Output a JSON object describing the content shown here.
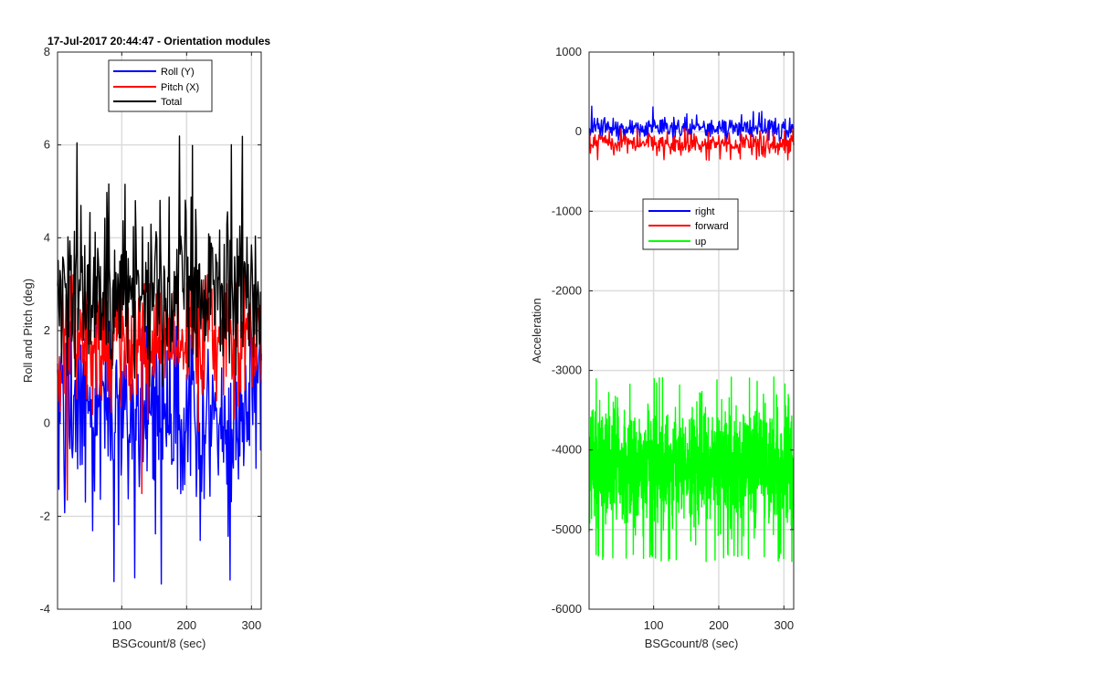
{
  "chart_data": [
    {
      "type": "line",
      "title": "17-Jul-2017 20:44:47 - Orientation modules",
      "xlabel": "BSGcount/8 (sec)",
      "ylabel": "Roll and Pitch (deg)",
      "xlim": [
        1,
        315
      ],
      "ylim": [
        -4,
        8
      ],
      "xticks": [
        100,
        200,
        300
      ],
      "yticks": [
        -4,
        -2,
        0,
        2,
        4,
        6,
        8
      ],
      "grid": true,
      "legend": "top-center",
      "series": [
        {
          "name": "Roll (Y)",
          "color": "#0000ff",
          "n": 315,
          "mean": 0.3,
          "spread": 1.0,
          "min": -3.6,
          "max": 2.2
        },
        {
          "name": "Pitch (X)",
          "color": "#ff0000",
          "n": 315,
          "mean": 1.8,
          "spread": 0.7,
          "min": -1.7,
          "max": 3.2
        },
        {
          "name": "Total",
          "color": "#000000",
          "n": 315,
          "mean": 2.9,
          "spread": 0.9,
          "min": 0.8,
          "max": 6.2
        }
      ]
    },
    {
      "type": "line",
      "title": "",
      "xlabel": "BSGcount/8 (sec)",
      "ylabel": "Acceleration",
      "xlim": [
        1,
        315
      ],
      "ylim": [
        -6000,
        1000
      ],
      "xticks": [
        100,
        200,
        300
      ],
      "yticks": [
        -6000,
        -5000,
        -4000,
        -3000,
        -2000,
        -1000,
        0,
        1000
      ],
      "grid": true,
      "legend": "center",
      "series": [
        {
          "name": "right",
          "color": "#0000ff",
          "n": 315,
          "mean": 40,
          "spread": 80,
          "min": -120,
          "max": 320
        },
        {
          "name": "forward",
          "color": "#ff0000",
          "n": 315,
          "mean": -150,
          "spread": 70,
          "min": -360,
          "max": 40
        },
        {
          "name": "up",
          "color": "#00ff00",
          "n": 1260,
          "mean": -4200,
          "spread": 380,
          "min": -5400,
          "max": -3080
        }
      ]
    }
  ]
}
